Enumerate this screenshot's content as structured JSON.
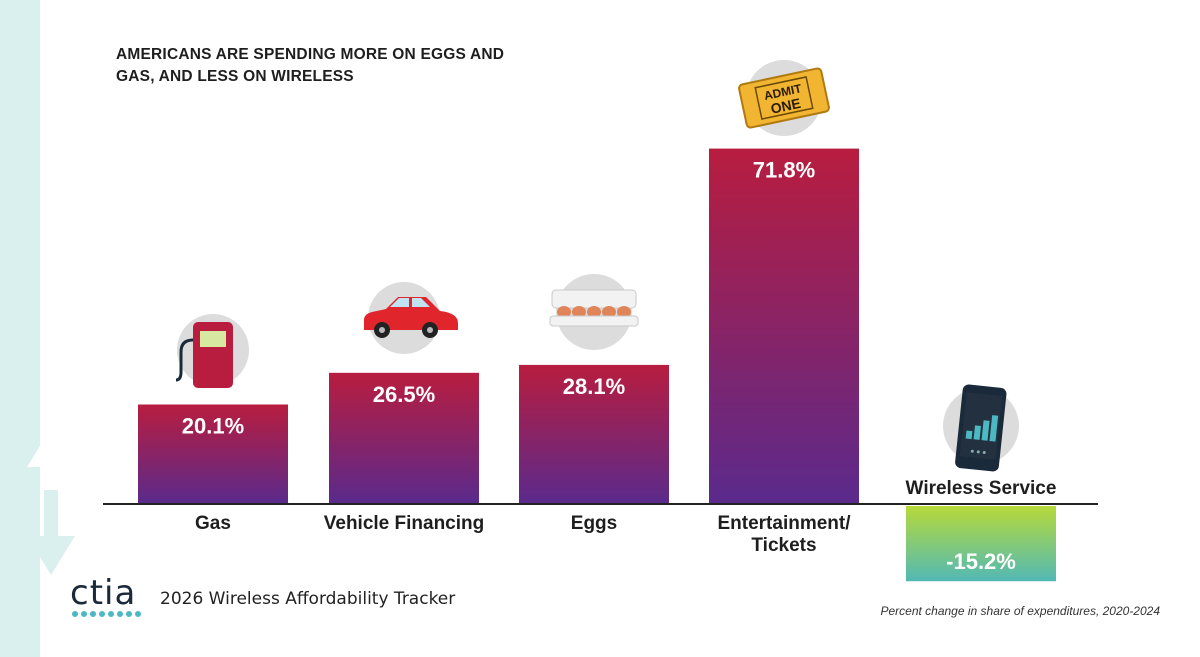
{
  "title": "AMERICANS ARE SPENDING MORE ON EGGS AND GAS, AND LESS ON WIRELESS",
  "footer": {
    "brand": "ctia",
    "report_title": "2026 Wireless Affordability Tracker",
    "footnote": "Percent change in share of expenditures, 2020-2024"
  },
  "chart_data": {
    "type": "bar",
    "title": "AMERICANS ARE SPENDING MORE ON EGGS AND GAS, AND LESS ON WIRELESS",
    "xlabel": "",
    "ylabel": "",
    "categories": [
      "Gas",
      "Vehicle Financing",
      "Eggs",
      "Entertainment/ Tickets",
      "Wireless Service"
    ],
    "values": [
      20.1,
      26.5,
      28.1,
      71.8,
      -15.2
    ],
    "data_labels": [
      "20.1%",
      "26.5%",
      "28.1%",
      "71.8%",
      "-15.2%"
    ],
    "icons": [
      "gas-pump-icon",
      "car-icon",
      "egg-carton-icon",
      "ticket-icon",
      "smartphone-icon"
    ],
    "ticket_icon_text": [
      "ADMIT",
      "ONE"
    ],
    "unit": "%",
    "grid": false,
    "legend": "none",
    "colors": {
      "positive_top": "#b81d3f",
      "positive_bottom": "#5a2a8c",
      "negative_top": "#b7d93a",
      "negative_bottom": "#52b9b5",
      "axis": "#222222",
      "text": "#1e1e1e",
      "label_on_bar": "#ffffff"
    }
  }
}
